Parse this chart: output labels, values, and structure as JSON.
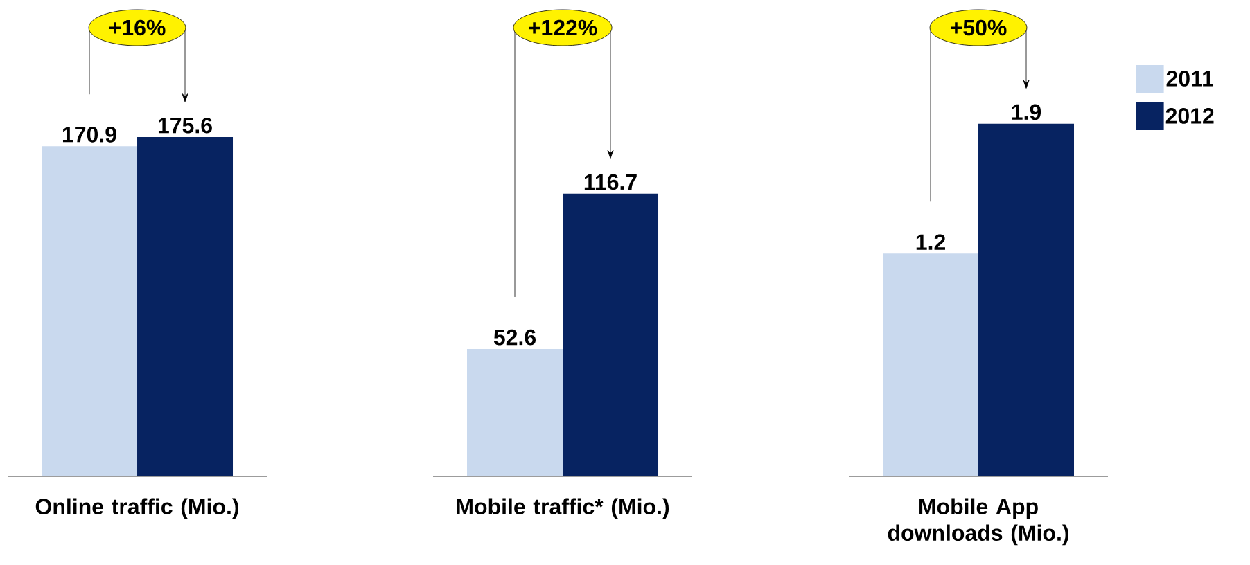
{
  "chart_data": [
    {
      "type": "bar",
      "categories": [
        null
      ],
      "xlabel": "Online traffic (Mio.)",
      "data_labels": true,
      "annotations": [
        "+16%"
      ],
      "series": [
        {
          "color": "#c9d9ee",
          "values": [
            170.9
          ]
        },
        {
          "color": "#072361",
          "values": [
            175.6
          ]
        }
      ]
    },
    {
      "type": "bar",
      "categories": [
        null
      ],
      "xlabel": "Mobile traffic* (Mio.)",
      "data_labels": true,
      "annotations": [
        "+122%"
      ],
      "series": [
        {
          "color": "#c9d9ee",
          "values": [
            52.6
          ]
        },
        {
          "color": "#072361",
          "values": [
            116.7
          ]
        }
      ]
    },
    {
      "type": "bar",
      "categories": [
        null
      ],
      "xlabel": "Mobile App downloads (Mio.)",
      "data_labels": true,
      "annotations": [
        "+50%"
      ],
      "legend": "right",
      "series": [
        {
          "name": "2011",
          "color": "#c9d9ee",
          "values": [
            1.2
          ]
        },
        {
          "name": "2012",
          "color": "#072361",
          "values": [
            1.9
          ]
        }
      ]
    }
  ]
}
